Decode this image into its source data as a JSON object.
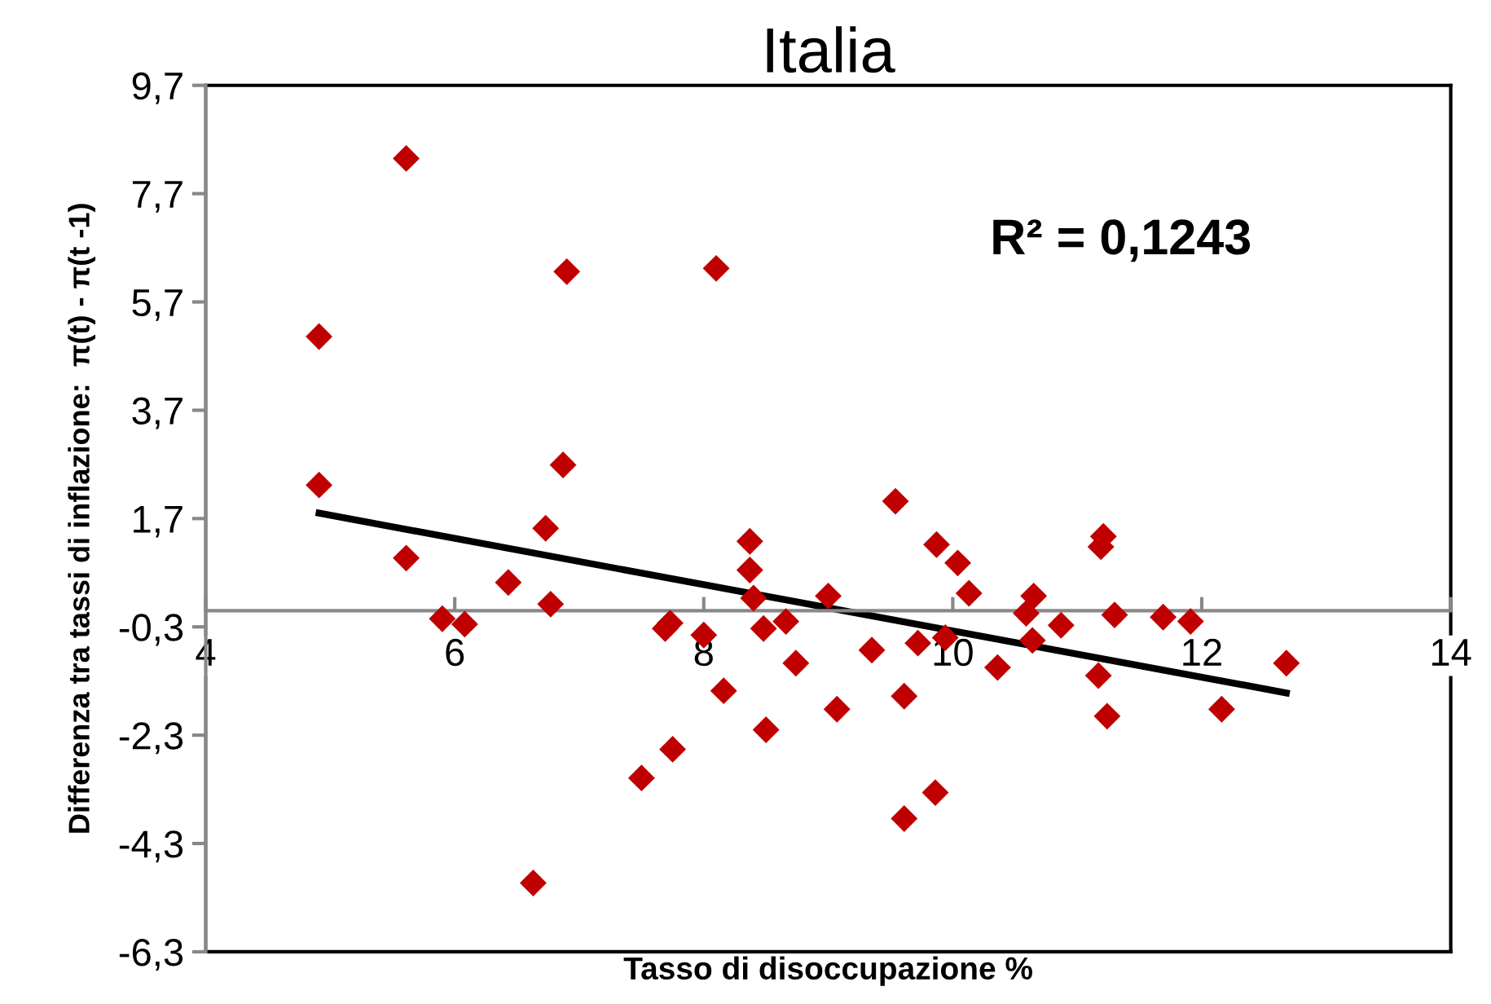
{
  "chart_data": {
    "type": "scatter",
    "title": "Italia",
    "xlabel": "Tasso di disoccupazione %",
    "ylabel": "Differenza tra tassi di inflazione:  π(t) - π(t -1)",
    "annotations": [
      "R² = 0,1243"
    ],
    "xlim": [
      4,
      14
    ],
    "xticks": [
      4,
      6,
      8,
      10,
      12,
      14
    ],
    "ylim": [
      -6.3,
      9.7
    ],
    "yticks": [
      {
        "value": -6.3,
        "label": "-6,3"
      },
      {
        "value": -4.3,
        "label": "-4,3"
      },
      {
        "value": -2.3,
        "label": "-2,3"
      },
      {
        "value": -0.3,
        "label": "-0,3"
      },
      {
        "value": 1.7,
        "label": "1,7"
      },
      {
        "value": 3.7,
        "label": "3,7"
      },
      {
        "value": 5.7,
        "label": "5,7"
      },
      {
        "value": 7.7,
        "label": "7,7"
      },
      {
        "value": 9.7,
        "label": "9,7"
      }
    ],
    "grid": false,
    "legend": false,
    "series": [
      {
        "type": "scatter",
        "color": "#c00000",
        "marker": "diamond",
        "x": [
          4.91,
          4.91,
          5.61,
          5.61,
          5.9,
          6.08,
          6.43,
          6.73,
          6.77,
          6.87,
          6.9,
          6.63,
          7.5,
          7.73,
          7.69,
          7.75,
          8.0,
          8.16,
          8.1,
          8.37,
          8.37,
          8.4,
          8.48,
          8.5,
          8.66,
          8.74,
          9.0,
          9.07,
          9.35,
          9.54,
          9.61,
          9.61,
          9.72,
          9.86,
          9.87,
          9.94,
          10.04,
          10.13,
          10.36,
          10.59,
          10.64,
          10.65,
          10.87,
          11.17,
          11.19,
          11.21,
          11.24,
          11.3,
          11.69,
          11.91,
          12.16,
          12.68
        ],
        "values": [
          5.06,
          2.32,
          8.35,
          0.97,
          -0.15,
          -0.25,
          0.52,
          1.52,
          0.12,
          2.69,
          6.26,
          -5.03,
          -3.09,
          -0.23,
          -0.33,
          -2.56,
          -0.45,
          -1.48,
          6.32,
          1.28,
          0.75,
          0.23,
          -0.33,
          -2.2,
          -0.2,
          -0.97,
          0.27,
          -1.82,
          -0.73,
          2.02,
          -1.58,
          -3.84,
          -0.6,
          -3.36,
          1.22,
          -0.5,
          0.88,
          0.32,
          -1.05,
          -0.05,
          -0.55,
          0.27,
          -0.27,
          -1.2,
          1.18,
          1.37,
          -1.95,
          -0.08,
          -0.12,
          -0.2,
          -1.82,
          -0.97
        ]
      },
      {
        "type": "line",
        "color": "#000000",
        "marker": "none",
        "line_style": "solid",
        "x": [
          4.91,
          12.68
        ],
        "values": [
          1.8,
          -1.52
        ]
      }
    ]
  }
}
